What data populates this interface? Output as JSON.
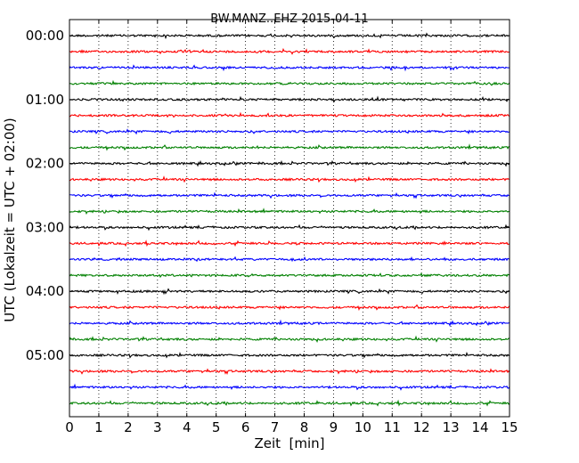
{
  "chart_data": {
    "type": "line",
    "title": "BW.MANZ..EHZ 2015-04-11",
    "xlabel": "Zeit  [min]",
    "ylabel": "UTC (Lokalzeit = UTC + 02:00)",
    "xlim": [
      0,
      15
    ],
    "x_ticks": [
      "0",
      "1",
      "2",
      "3",
      "4",
      "5",
      "6",
      "7",
      "8",
      "9",
      "10",
      "11",
      "12",
      "13",
      "14",
      "15"
    ],
    "y_ticks": [
      "00:00",
      "01:00",
      "02:00",
      "03:00",
      "04:00",
      "05:00"
    ],
    "grid": "vertical dotted at each minute",
    "trace_interval_minutes": 15,
    "trace_count": 24,
    "trace_start_times": [
      "00:00",
      "00:15",
      "00:30",
      "00:45",
      "01:00",
      "01:15",
      "01:30",
      "01:45",
      "02:00",
      "02:15",
      "02:30",
      "02:45",
      "03:00",
      "03:15",
      "03:30",
      "03:45",
      "04:00",
      "04:15",
      "04:30",
      "04:45",
      "05:00",
      "05:15",
      "05:30",
      "05:45"
    ],
    "trace_colors": [
      "#000000",
      "#ff0000",
      "#0000ff",
      "#008000"
    ]
  }
}
